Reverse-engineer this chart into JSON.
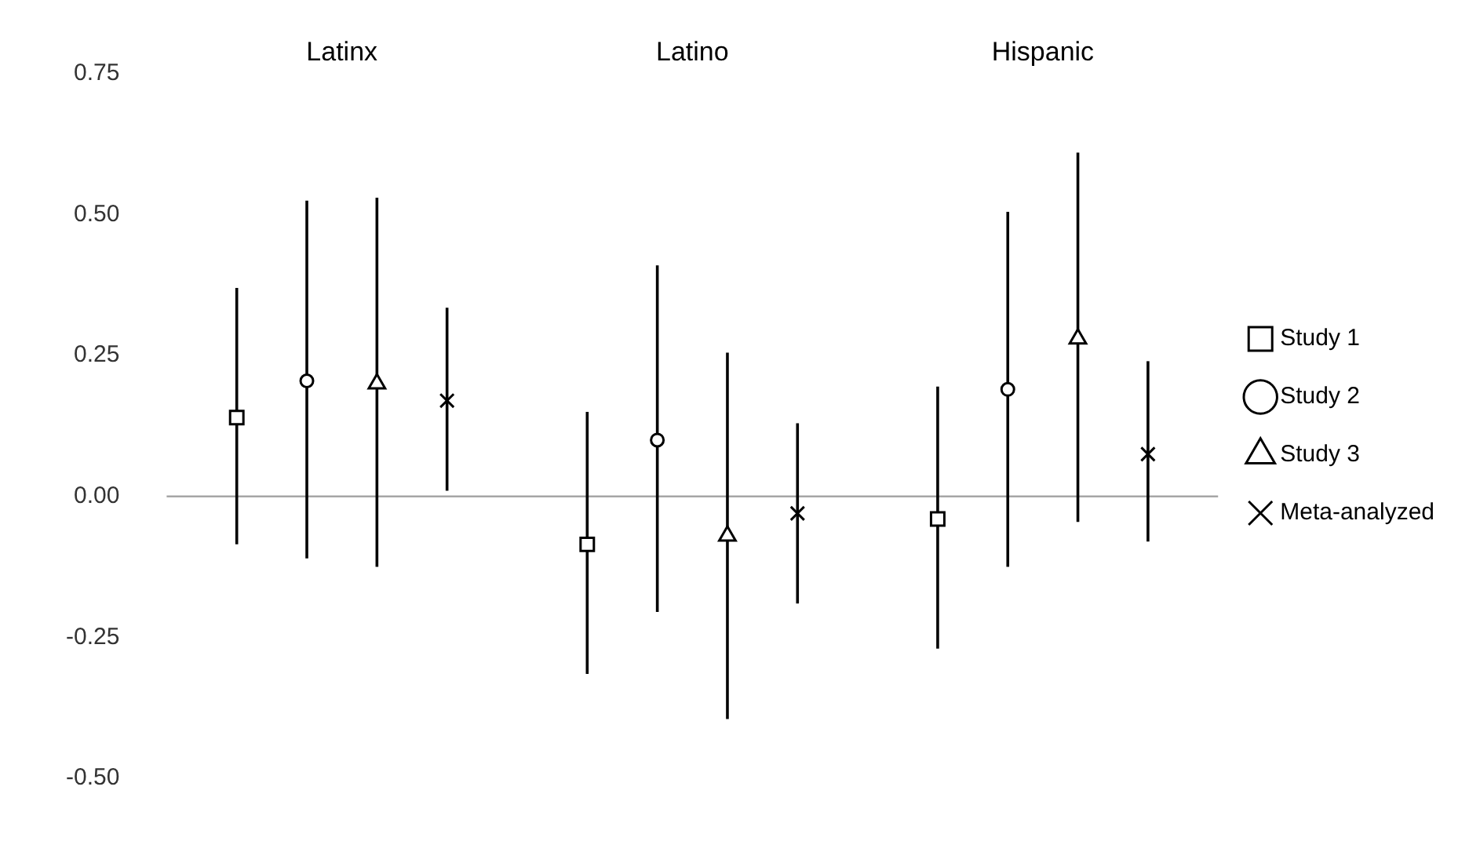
{
  "chart_data": {
    "type": "scatter",
    "categories": [
      "Latinx",
      "Latino",
      "Hispanic"
    ],
    "series": [
      {
        "name": "Study 1",
        "color": "#000000",
        "marker": "square",
        "values": [
          0.14,
          -0.085,
          -0.04
        ],
        "errors": [
          [
            -0.085,
            0.37
          ],
          [
            -0.315,
            0.15
          ],
          [
            -0.27,
            0.195
          ]
        ]
      },
      {
        "name": "Study 2",
        "color": "#000000",
        "marker": "circle",
        "values": [
          0.205,
          0.1,
          0.19
        ],
        "errors": [
          [
            -0.11,
            0.525
          ],
          [
            -0.205,
            0.41
          ],
          [
            -0.125,
            0.505
          ]
        ]
      },
      {
        "name": "Study 3",
        "color": "#000000",
        "marker": "triangle",
        "values": [
          0.2,
          -0.07,
          0.28
        ],
        "errors": [
          [
            -0.125,
            0.53
          ],
          [
            -0.395,
            0.255
          ],
          [
            -0.045,
            0.61
          ]
        ]
      },
      {
        "name": "Meta-analyzed",
        "color": "#000000",
        "marker": "cross",
        "values": [
          0.17,
          -0.03,
          0.075
        ],
        "errors": [
          [
            0.01,
            0.335
          ],
          [
            -0.19,
            0.13
          ],
          [
            -0.08,
            0.24
          ]
        ]
      }
    ],
    "ylim": [
      -0.5,
      0.75
    ],
    "yticks": [
      {
        "value": -0.5,
        "label": "-0.50"
      },
      {
        "value": -0.25,
        "label": "-0.25"
      },
      {
        "value": 0,
        "label": "0.00"
      },
      {
        "value": 0.25,
        "label": "0.25"
      },
      {
        "value": 0.5,
        "label": "0.50"
      },
      {
        "value": 0.75,
        "label": "0.75"
      }
    ],
    "ref_lines": [
      {
        "axis": "y",
        "value": 0,
        "color": "#a6a6a6"
      }
    ],
    "grid": false,
    "legend": "right"
  }
}
